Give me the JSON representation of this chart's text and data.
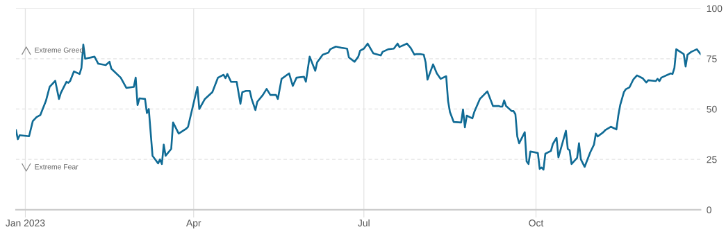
{
  "chart_data": {
    "type": "line",
    "x": [
      "2022-12-27",
      "2022-12-28",
      "2022-12-29",
      "2023-01-03",
      "2023-01-05",
      "2023-01-07",
      "2023-01-09",
      "2023-01-12",
      "2023-01-14",
      "2023-01-17",
      "2023-01-19",
      "2023-01-20",
      "2023-01-23",
      "2023-01-24",
      "2023-01-25",
      "2023-01-27",
      "2023-01-30",
      "2023-01-31",
      "2023-02-01",
      "2023-02-02",
      "2023-02-07",
      "2023-02-09",
      "2023-02-13",
      "2023-02-15",
      "2023-02-16",
      "2023-02-21",
      "2023-02-24",
      "2023-02-28",
      "2023-03-01",
      "2023-03-02",
      "2023-03-03",
      "2023-03-06",
      "2023-03-07",
      "2023-03-08",
      "2023-03-10",
      "2023-03-13",
      "2023-03-14",
      "2023-03-15",
      "2023-03-16",
      "2023-03-17",
      "2023-03-20",
      "2023-03-21",
      "2023-03-24",
      "2023-03-28",
      "2023-03-29",
      "2023-04-03",
      "2023-04-04",
      "2023-04-07",
      "2023-04-11",
      "2023-04-14",
      "2023-04-17",
      "2023-04-18",
      "2023-04-19",
      "2023-04-21",
      "2023-04-24",
      "2023-04-26",
      "2023-04-27",
      "2023-04-29",
      "2023-05-01",
      "2023-05-02",
      "2023-05-04",
      "2023-05-05",
      "2023-05-08",
      "2023-05-10",
      "2023-05-12",
      "2023-05-15",
      "2023-05-16",
      "2023-05-18",
      "2023-05-22",
      "2023-05-24",
      "2023-05-26",
      "2023-05-30",
      "2023-05-31",
      "2023-06-02",
      "2023-06-05",
      "2023-06-06",
      "2023-06-09",
      "2023-06-12",
      "2023-06-13",
      "2023-06-16",
      "2023-06-19",
      "2023-06-22",
      "2023-06-23",
      "2023-06-26",
      "2023-06-28",
      "2023-06-29",
      "2023-07-01",
      "2023-07-03",
      "2023-07-06",
      "2023-07-10",
      "2023-07-11",
      "2023-07-14",
      "2023-07-17",
      "2023-07-19",
      "2023-07-20",
      "2023-07-24",
      "2023-07-26",
      "2023-07-28",
      "2023-07-29",
      "2023-07-31",
      "2023-08-02",
      "2023-08-03",
      "2023-08-04",
      "2023-08-07",
      "2023-08-09",
      "2023-08-11",
      "2023-08-14",
      "2023-08-15",
      "2023-08-16",
      "2023-08-18",
      "2023-08-22",
      "2023-08-23",
      "2023-08-24",
      "2023-08-25",
      "2023-08-28",
      "2023-08-29",
      "2023-09-01",
      "2023-09-05",
      "2023-09-08",
      "2023-09-11",
      "2023-09-12",
      "2023-09-13",
      "2023-09-14",
      "2023-09-15",
      "2023-09-18",
      "2023-09-19",
      "2023-09-20",
      "2023-09-21",
      "2023-09-22",
      "2023-09-25",
      "2023-09-26",
      "2023-09-27",
      "2023-09-28",
      "2023-10-02",
      "2023-10-03",
      "2023-10-04",
      "2023-10-05",
      "2023-10-06",
      "2023-10-09",
      "2023-10-10",
      "2023-10-12",
      "2023-10-13",
      "2023-10-17",
      "2023-10-18",
      "2023-10-19",
      "2023-10-20",
      "2023-10-23",
      "2023-10-24",
      "2023-10-25",
      "2023-10-27",
      "2023-10-30",
      "2023-11-01",
      "2023-11-02",
      "2023-11-03",
      "2023-11-06",
      "2023-11-07",
      "2023-11-10",
      "2023-11-13",
      "2023-11-14",
      "2023-11-15",
      "2023-11-17",
      "2023-11-18",
      "2023-11-20",
      "2023-11-22",
      "2023-11-24",
      "2023-11-27",
      "2023-11-29",
      "2023-11-30",
      "2023-12-04",
      "2023-12-05",
      "2023-12-06",
      "2023-12-07",
      "2023-12-12",
      "2023-12-13",
      "2023-12-14",
      "2023-12-15",
      "2023-12-19",
      "2023-12-20",
      "2023-12-21",
      "2023-12-23",
      "2023-12-26",
      "2023-12-28"
    ],
    "series": [
      {
        "color": "#106b95",
        "values": [
          39.5,
          35,
          37,
          36.5,
          44,
          46,
          47,
          54,
          61,
          64,
          55,
          58,
          63.5,
          63,
          64,
          68.7,
          67.4,
          70.4,
          82,
          75,
          76,
          72.5,
          71.8,
          73.5,
          70,
          65.6,
          60.5,
          61,
          65.6,
          52,
          55.3,
          55,
          48,
          50,
          26.8,
          23,
          25,
          22.7,
          32.3,
          26.8,
          30.2,
          43.3,
          37.8,
          40.2,
          41.2,
          61,
          50,
          55,
          58.4,
          65.6,
          67,
          65.3,
          67.4,
          63.5,
          63.5,
          52.6,
          58.4,
          59,
          59,
          55,
          49.5,
          53.6,
          57,
          60,
          57,
          57,
          55,
          65,
          67.7,
          61.5,
          65.6,
          66,
          63.6,
          76,
          69,
          73.2,
          77,
          78,
          79.7,
          81,
          80.4,
          80,
          75.6,
          73.5,
          76,
          79,
          80,
          82.5,
          77.7,
          76.6,
          78.4,
          79.7,
          80,
          82.5,
          80.8,
          82.5,
          80.4,
          77,
          77.3,
          77.3,
          77,
          73.2,
          64.6,
          72.2,
          67.7,
          65,
          66.3,
          54,
          48.5,
          43.6,
          43.3,
          49.8,
          40.9,
          46.7,
          45.4,
          48.5,
          55,
          58.8,
          51.5,
          51.5,
          51.2,
          51.2,
          54.3,
          51.5,
          49,
          49,
          47.4,
          36.4,
          33,
          38.5,
          24,
          22.7,
          28.9,
          28.2,
          20.3,
          21,
          19.9,
          27.8,
          29.2,
          32.6,
          35.7,
          26,
          39.2,
          30.2,
          29.5,
          22.7,
          25.8,
          33,
          25,
          21.3,
          28.5,
          32.3,
          37.8,
          36.4,
          38.5,
          39.5,
          41.2,
          39.9,
          46.7,
          51.9,
          58.4,
          59.8,
          60.8,
          64.6,
          66.7,
          65.3,
          63.2,
          64.3,
          63.9,
          65,
          63.9,
          65.6,
          67.7,
          67.4,
          70.4,
          79.7,
          77.3,
          71.1,
          77,
          78.4,
          79.7,
          77.3
        ]
      }
    ],
    "xlim": [
      "2022-12-27",
      "2023-12-28"
    ],
    "xticks": [
      {
        "value": "2023-01-01",
        "label": "Jan 2023"
      },
      {
        "value": "2023-04-01",
        "label": "Apr"
      },
      {
        "value": "2023-07-01",
        "label": "Jul"
      },
      {
        "value": "2023-10-01",
        "label": "Oct"
      }
    ],
    "ylim": [
      0,
      100
    ],
    "yticks": [
      0,
      25,
      50,
      75,
      100
    ],
    "grid": true,
    "line_style": "solid",
    "annotations": [
      "Extreme Greed",
      "Extreme Fear"
    ]
  }
}
